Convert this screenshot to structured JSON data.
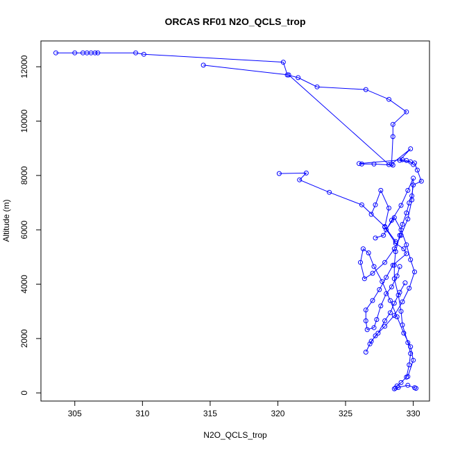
{
  "chart_data": {
    "type": "line",
    "title": "ORCAS RF01 N2O_QCLS_trop",
    "xlabel": "N2O_QCLS_trop",
    "ylabel": "Altitude (m)",
    "xlim": [
      302.5,
      331.2
    ],
    "ylim": [
      -300,
      12950
    ],
    "xticks": [
      305,
      310,
      315,
      320,
      325,
      330
    ],
    "yticks": [
      0,
      2000,
      4000,
      6000,
      8000,
      10000,
      12000
    ],
    "grid": false,
    "markers": "open-circle",
    "color": "#0000ff",
    "series": [
      {
        "x": [
          303.6,
          305.0,
          305.6,
          305.9,
          306.2,
          306.5,
          306.7,
          309.5,
          310.1,
          320.4,
          320.7,
          321.5,
          322.9,
          326.5,
          328.2,
          329.5,
          328.5,
          328.5,
          328.4,
          329.8,
          329.0,
          330.1,
          330.3,
          330.6,
          330.0,
          329.9,
          329.7,
          329.5,
          329.2,
          329.0,
          328.7,
          328.6,
          328.6,
          328.9,
          329.1,
          329.2,
          329.6,
          329.8,
          329.7,
          329.5,
          329.1,
          328.8,
          328.7,
          328.6,
          328.9,
          329.6,
          330.1,
          330.2
        ],
        "y": [
          12510,
          12510,
          12510,
          12510,
          12510,
          12510,
          12510,
          12510,
          12460,
          12170,
          11700,
          11600,
          11260,
          11160,
          10800,
          10340,
          9880,
          9430,
          8420,
          8980,
          8560,
          8460,
          8200,
          7790,
          7650,
          7250,
          6990,
          6620,
          6200,
          5800,
          5200,
          4700,
          4200,
          3600,
          3000,
          2500,
          1850,
          1450,
          1030,
          580,
          380,
          260,
          180,
          150,
          200,
          280,
          190,
          170
        ]
      },
      {
        "x": [
          314.5,
          320.8,
          328.2,
          328.5,
          327.1,
          326.2,
          326.0,
          329.2,
          329.5,
          329.8,
          330.0
        ],
        "y": [
          12060,
          11700,
          8400,
          8380,
          8420,
          8420,
          8440,
          8580,
          8550,
          8500,
          8400
        ]
      },
      {
        "x": [
          320.1,
          322.1,
          321.6,
          323.8,
          326.2,
          327.9,
          328.7
        ],
        "y": [
          8070,
          8090,
          7840,
          7380,
          6920,
          6120,
          5570
        ]
      },
      {
        "x": [
          326.9,
          327.2,
          327.6,
          328.2,
          327.9,
          328.7,
          329.3,
          329.5,
          328.5,
          328.0,
          327.5,
          327.0,
          326.5,
          326.5,
          326.6,
          327.1,
          327.3,
          327.6,
          328.0,
          328.4,
          328.8,
          329.0
        ],
        "y": [
          6570,
          6920,
          7450,
          6800,
          6100,
          5500,
          5300,
          5120,
          4700,
          4250,
          3800,
          3400,
          3050,
          2650,
          2330,
          2400,
          2700,
          3200,
          3650,
          3900,
          4300,
          4650
        ]
      },
      {
        "x": [
          327.2,
          327.8,
          328.4,
          329.1,
          329.6,
          330.0,
          329.9,
          329.6,
          329.1,
          328.6,
          327.9,
          327.0,
          326.4,
          326.1,
          326.3,
          326.7,
          327.1,
          327.7,
          328.3,
          328.8,
          329.3,
          329.8,
          330.0,
          329.6
        ],
        "y": [
          5700,
          5800,
          6350,
          6900,
          7450,
          7900,
          7100,
          6400,
          5800,
          5300,
          4800,
          4400,
          4200,
          4800,
          5300,
          5150,
          4650,
          4100,
          3400,
          2800,
          2200,
          1700,
          1200,
          600
        ]
      },
      {
        "x": [
          328.0,
          328.6,
          329.1,
          329.5,
          329.8,
          330.1,
          329.7,
          329.2,
          328.6,
          327.9,
          327.2,
          326.8,
          326.5,
          326.9,
          327.4,
          327.9,
          328.3,
          328.6,
          329.0,
          329.4
        ],
        "y": [
          6000,
          6450,
          6000,
          5450,
          4900,
          4450,
          3850,
          3350,
          2850,
          2450,
          2100,
          1800,
          1500,
          1900,
          2200,
          2650,
          2950,
          3300,
          3700,
          4050
        ]
      }
    ]
  }
}
